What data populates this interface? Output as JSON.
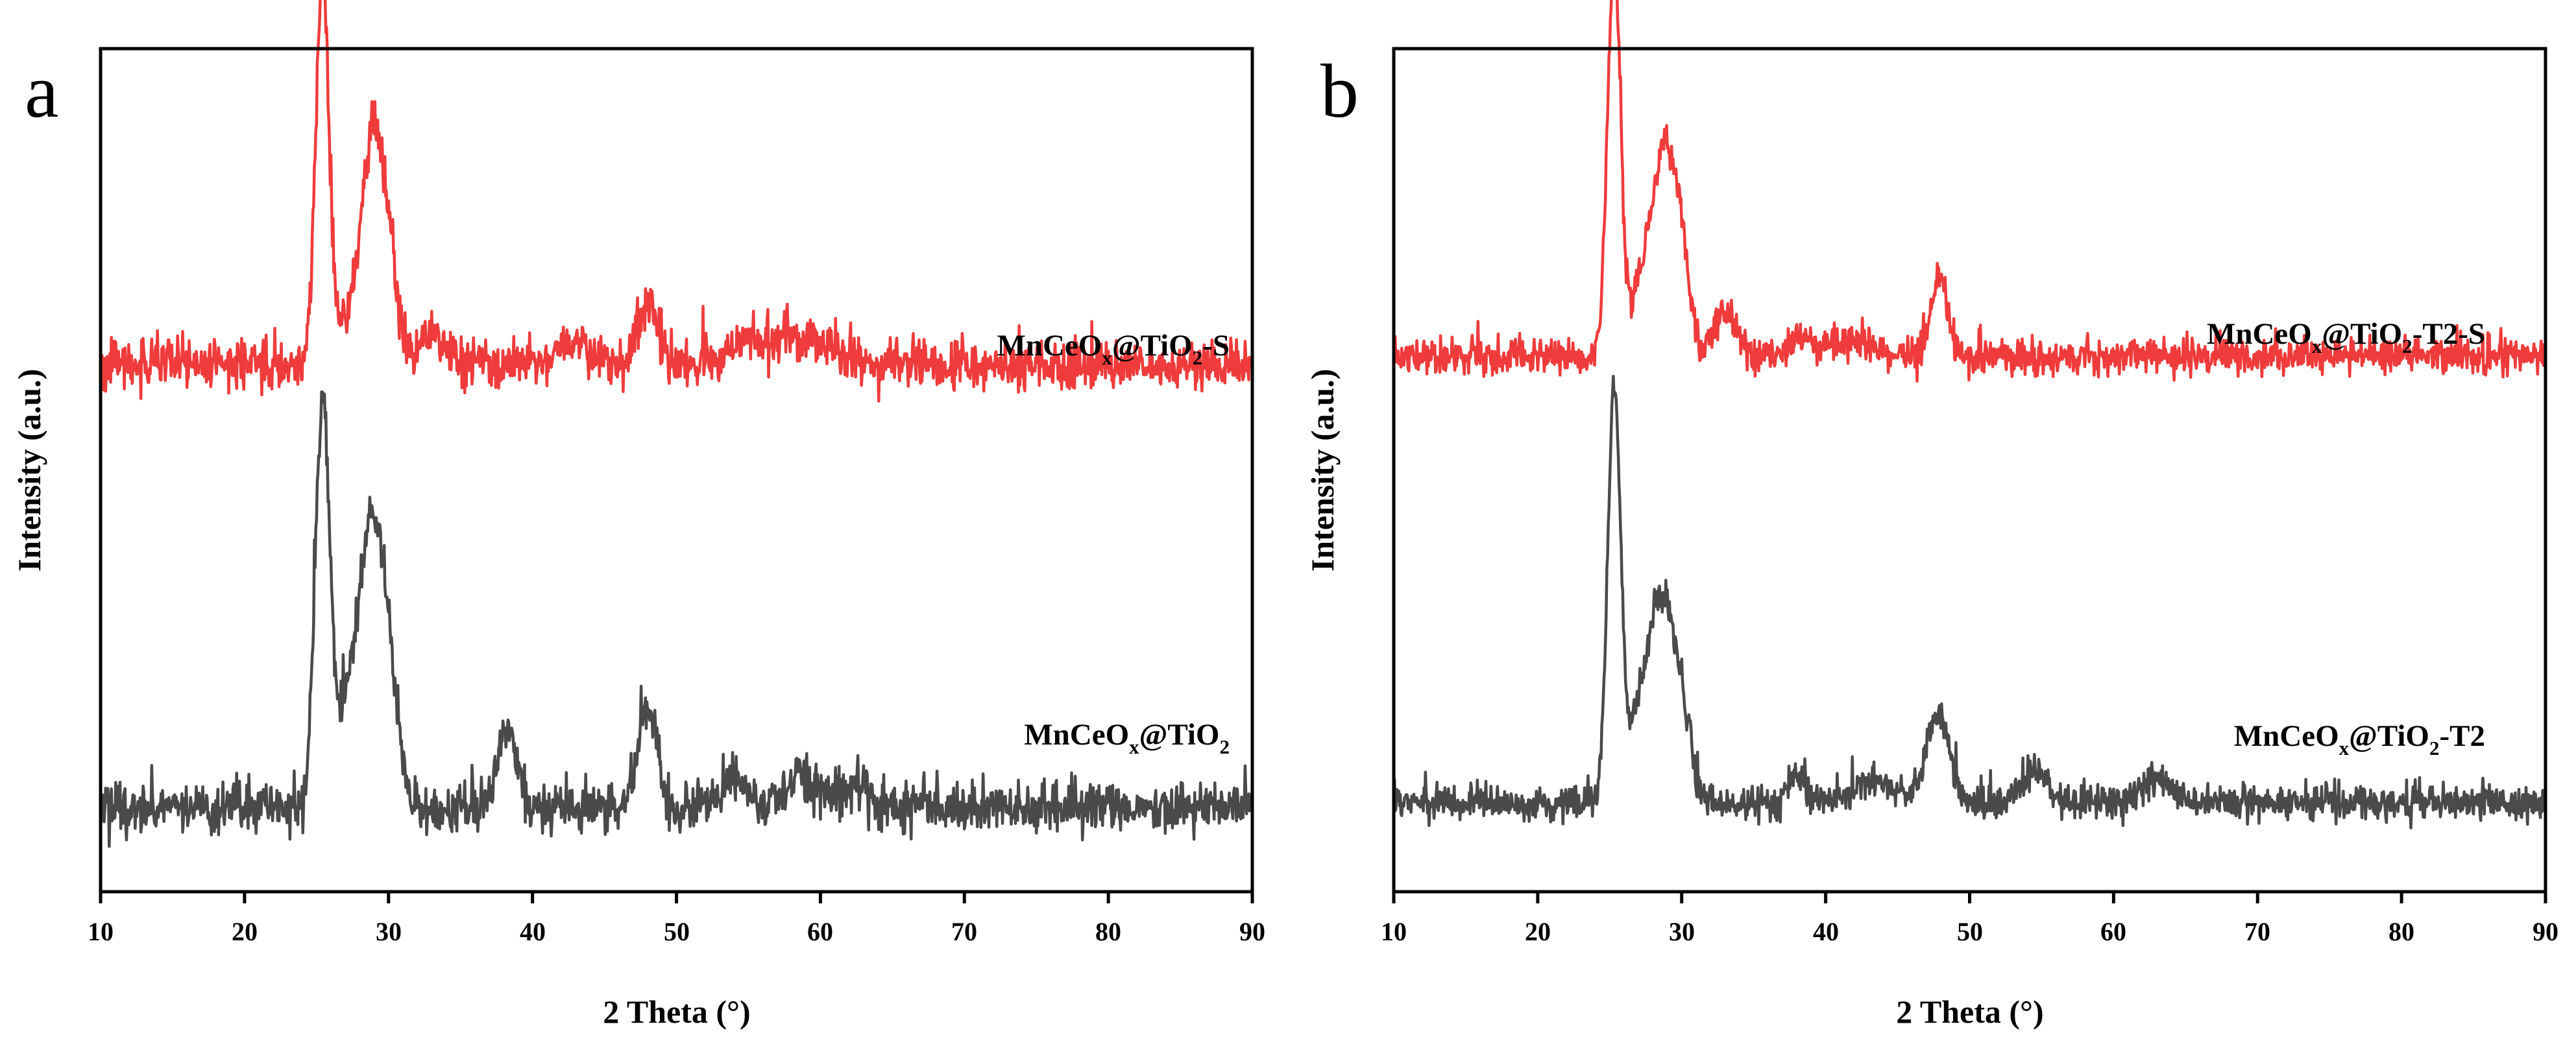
{
  "chart_data": [
    {
      "type": "line",
      "panel": "a",
      "xlabel": "2 Theta (°)",
      "ylabel": "Intensity (a.u.)",
      "xlim": [
        10,
        90
      ],
      "xticks": [
        10,
        20,
        30,
        40,
        50,
        60,
        70,
        80,
        90
      ],
      "tick_labels": [
        "10",
        "20",
        "30",
        "40",
        "50",
        "60",
        "70",
        "80",
        "90"
      ],
      "ylim": [
        0,
        10
      ],
      "y_tick_labels_shown": false,
      "series": [
        {
          "name": "MnCeOx@TiO2-S",
          "label_parts": {
            "base": "MnCeO",
            "sub1": "x",
            "mid": "@TiO",
            "sub2": "2",
            "suffix": "-S"
          },
          "color": "#ef3b3b",
          "offset": 5.95,
          "baseline": 0.3,
          "noise": 0.28,
          "peaks": [
            {
              "two_theta": 25.4,
              "height": 4.6,
              "width": 0.45
            },
            {
              "two_theta": 27.2,
              "height": 0.55,
              "width": 0.8
            },
            {
              "two_theta": 28.9,
              "height": 2.6,
              "width": 0.75
            },
            {
              "two_theta": 30.0,
              "height": 1.0,
              "width": 0.6
            },
            {
              "two_theta": 33.0,
              "height": 0.35,
              "width": 0.9
            },
            {
              "two_theta": 43.0,
              "height": 0.3,
              "width": 1.0
            },
            {
              "two_theta": 48.0,
              "height": 0.8,
              "width": 0.65
            },
            {
              "two_theta": 55.0,
              "height": 0.25,
              "width": 1.5
            },
            {
              "two_theta": 59.0,
              "height": 0.3,
              "width": 2.0
            }
          ]
        },
        {
          "name": "MnCeOx@TiO2",
          "label_parts": {
            "base": "MnCeO",
            "sub1": "x",
            "mid": "@TiO",
            "sub2": "2",
            "suffix": ""
          },
          "color": "#4a4a4a",
          "offset": 0.55,
          "baseline": 0.45,
          "noise": 0.28,
          "peaks": [
            {
              "two_theta": 25.4,
              "height": 4.7,
              "width": 0.5
            },
            {
              "two_theta": 27.0,
              "height": 0.9,
              "width": 0.9
            },
            {
              "two_theta": 28.8,
              "height": 3.1,
              "width": 0.9
            },
            {
              "two_theta": 30.0,
              "height": 1.0,
              "width": 0.7
            },
            {
              "two_theta": 38.2,
              "height": 0.9,
              "width": 0.7
            },
            {
              "two_theta": 48.0,
              "height": 1.2,
              "width": 0.65
            },
            {
              "two_theta": 54.0,
              "height": 0.3,
              "width": 1.0
            },
            {
              "two_theta": 58.5,
              "height": 0.35,
              "width": 1.2
            },
            {
              "two_theta": 62.5,
              "height": 0.25,
              "width": 1.0
            }
          ]
        }
      ]
    },
    {
      "type": "line",
      "panel": "b",
      "xlabel": "2 Theta (°)",
      "ylabel": "Intensity (a.u.)",
      "xlim": [
        10,
        90
      ],
      "xticks": [
        10,
        20,
        30,
        40,
        50,
        60,
        70,
        80,
        90
      ],
      "tick_labels": [
        "10",
        "20",
        "30",
        "40",
        "50",
        "60",
        "70",
        "80",
        "90"
      ],
      "ylim": [
        0,
        10
      ],
      "y_tick_labels_shown": false,
      "series": [
        {
          "name": "MnCeOx@TiO2-T2-S",
          "label_parts": {
            "base": "MnCeO",
            "sub1": "x",
            "mid": "@TiO",
            "sub2": "2",
            "suffix": "-T2-S"
          },
          "color": "#ef3b3b",
          "offset": 6.1,
          "baseline": 0.25,
          "noise": 0.2,
          "peaks": [
            {
              "two_theta": 25.3,
              "height": 4.7,
              "width": 0.45
            },
            {
              "two_theta": 27.2,
              "height": 0.7,
              "width": 0.8
            },
            {
              "two_theta": 28.8,
              "height": 2.3,
              "width": 0.85
            },
            {
              "two_theta": 30.0,
              "height": 0.8,
              "width": 0.6
            },
            {
              "two_theta": 33.0,
              "height": 0.5,
              "width": 0.8
            },
            {
              "two_theta": 38.0,
              "height": 0.2,
              "width": 0.7
            },
            {
              "two_theta": 41.5,
              "height": 0.2,
              "width": 1.5
            },
            {
              "two_theta": 47.9,
              "height": 0.95,
              "width": 0.55
            }
          ]
        },
        {
          "name": "MnCeOx@TiO2-T2",
          "label_parts": {
            "base": "MnCeO",
            "sub1": "x",
            "mid": "@TiO",
            "sub2": "2",
            "suffix": "-T2"
          },
          "color": "#4a4a4a",
          "offset": 0.75,
          "baseline": 0.3,
          "noise": 0.2,
          "peaks": [
            {
              "two_theta": 25.3,
              "height": 4.8,
              "width": 0.45
            },
            {
              "two_theta": 27.0,
              "height": 0.8,
              "width": 0.9
            },
            {
              "two_theta": 28.6,
              "height": 2.2,
              "width": 0.9
            },
            {
              "two_theta": 30.0,
              "height": 0.8,
              "width": 0.7
            },
            {
              "two_theta": 38.0,
              "height": 0.35,
              "width": 0.6
            },
            {
              "two_theta": 43.5,
              "height": 0.25,
              "width": 1.5
            },
            {
              "two_theta": 47.8,
              "height": 1.05,
              "width": 0.8
            },
            {
              "two_theta": 54.5,
              "height": 0.4,
              "width": 0.9
            },
            {
              "two_theta": 63.0,
              "height": 0.3,
              "width": 1.0
            }
          ]
        }
      ]
    }
  ]
}
